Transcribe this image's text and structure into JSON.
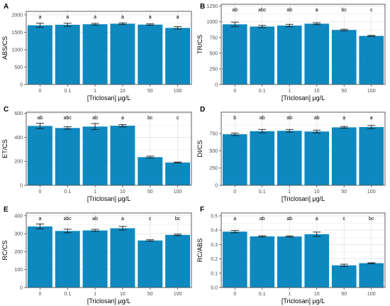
{
  "colors": {
    "bar": "#0e89bf",
    "panel_bg": "#ffffff",
    "grid": "#e3e3e3",
    "frame": "#4d4d4d",
    "error": "#1a1a1a"
  },
  "chart_data": [
    {
      "panel": "A",
      "type": "bar",
      "categories": [
        "0",
        "0.1",
        "1",
        "10",
        "50",
        "100"
      ],
      "values": [
        1700,
        1715,
        1730,
        1745,
        1720,
        1625
      ],
      "errors": [
        60,
        45,
        25,
        25,
        20,
        35
      ],
      "letters": [
        "a",
        "a",
        "a",
        "a",
        "a",
        "a"
      ],
      "xlabel": "[Triclosan] μg/L",
      "ylabel": "ABS/CS",
      "ylim": [
        0,
        2100
      ],
      "yticks": [
        0,
        500,
        1000,
        1500,
        2000
      ],
      "grid": true
    },
    {
      "panel": "B",
      "type": "bar",
      "categories": [
        "0",
        "0.1",
        "1",
        "10",
        "50",
        "100"
      ],
      "values": [
        960,
        925,
        940,
        970,
        870,
        775
      ],
      "errors": [
        35,
        18,
        20,
        15,
        12,
        8
      ],
      "letters": [
        "ab",
        "abc",
        "ab",
        "a",
        "bc",
        "c"
      ],
      "xlabel": "[Triclosan] μg/L",
      "ylabel": "TR/CS",
      "ylim": [
        0,
        1280
      ],
      "yticks": [
        0,
        250,
        500,
        750,
        1000,
        1250
      ],
      "grid": true
    },
    {
      "panel": "C",
      "type": "bar",
      "categories": [
        "0",
        "0.1",
        "1",
        "10",
        "50",
        "100"
      ],
      "values": [
        495,
        478,
        490,
        497,
        235,
        190
      ],
      "errors": [
        22,
        10,
        25,
        10,
        8,
        4
      ],
      "letters": [
        "ab",
        "abc",
        "ab",
        "a",
        "bc",
        "c"
      ],
      "xlabel": "[Triclosan] μg/L",
      "ylabel": "ET/CS",
      "ylim": [
        0,
        610
      ],
      "yticks": [
        0,
        200,
        400,
        600
      ],
      "grid": true
    },
    {
      "panel": "D",
      "type": "bar",
      "categories": [
        "0",
        "0.1",
        "1",
        "10",
        "50",
        "100"
      ],
      "values": [
        740,
        785,
        790,
        780,
        840,
        845
      ],
      "errors": [
        18,
        25,
        20,
        20,
        12,
        22
      ],
      "letters": [
        "b",
        "ab",
        "ab",
        "ab",
        "a",
        "a"
      ],
      "xlabel": "[Triclosan] μg/L",
      "ylabel": "DI/CS",
      "ylim": [
        0,
        1060
      ],
      "yticks": [
        0,
        250,
        500,
        750
      ],
      "grid": true
    },
    {
      "panel": "E",
      "type": "bar",
      "categories": [
        "0",
        "0.1",
        "1",
        "10",
        "50",
        "100"
      ],
      "values": [
        340,
        315,
        318,
        330,
        262,
        293
      ],
      "errors": [
        14,
        10,
        6,
        10,
        4,
        4
      ],
      "letters": [
        "a",
        "abc",
        "ab",
        "a",
        "c",
        "bc"
      ],
      "xlabel": "[Triclosan] μg/L",
      "ylabel": "RC/CS",
      "ylim": [
        0,
        415
      ],
      "yticks": [
        0,
        100,
        200,
        300,
        400
      ],
      "grid": true
    },
    {
      "panel": "F",
      "type": "bar",
      "categories": [
        "0",
        "0.1",
        "1",
        "10",
        "50",
        "100"
      ],
      "values": [
        0.39,
        0.357,
        0.356,
        0.372,
        0.155,
        0.17
      ],
      "errors": [
        0.008,
        0.004,
        0.004,
        0.015,
        0.008,
        0.003
      ],
      "letters": [
        "a",
        "ab",
        "ab",
        "a",
        "c",
        "bc"
      ],
      "xlabel": "[Triclosan] μg/L",
      "ylabel": "RC/ABS",
      "ylim": [
        0,
        0.52
      ],
      "yticks": [
        0.0,
        0.1,
        0.2,
        0.3,
        0.4,
        0.5
      ],
      "grid": true
    }
  ]
}
